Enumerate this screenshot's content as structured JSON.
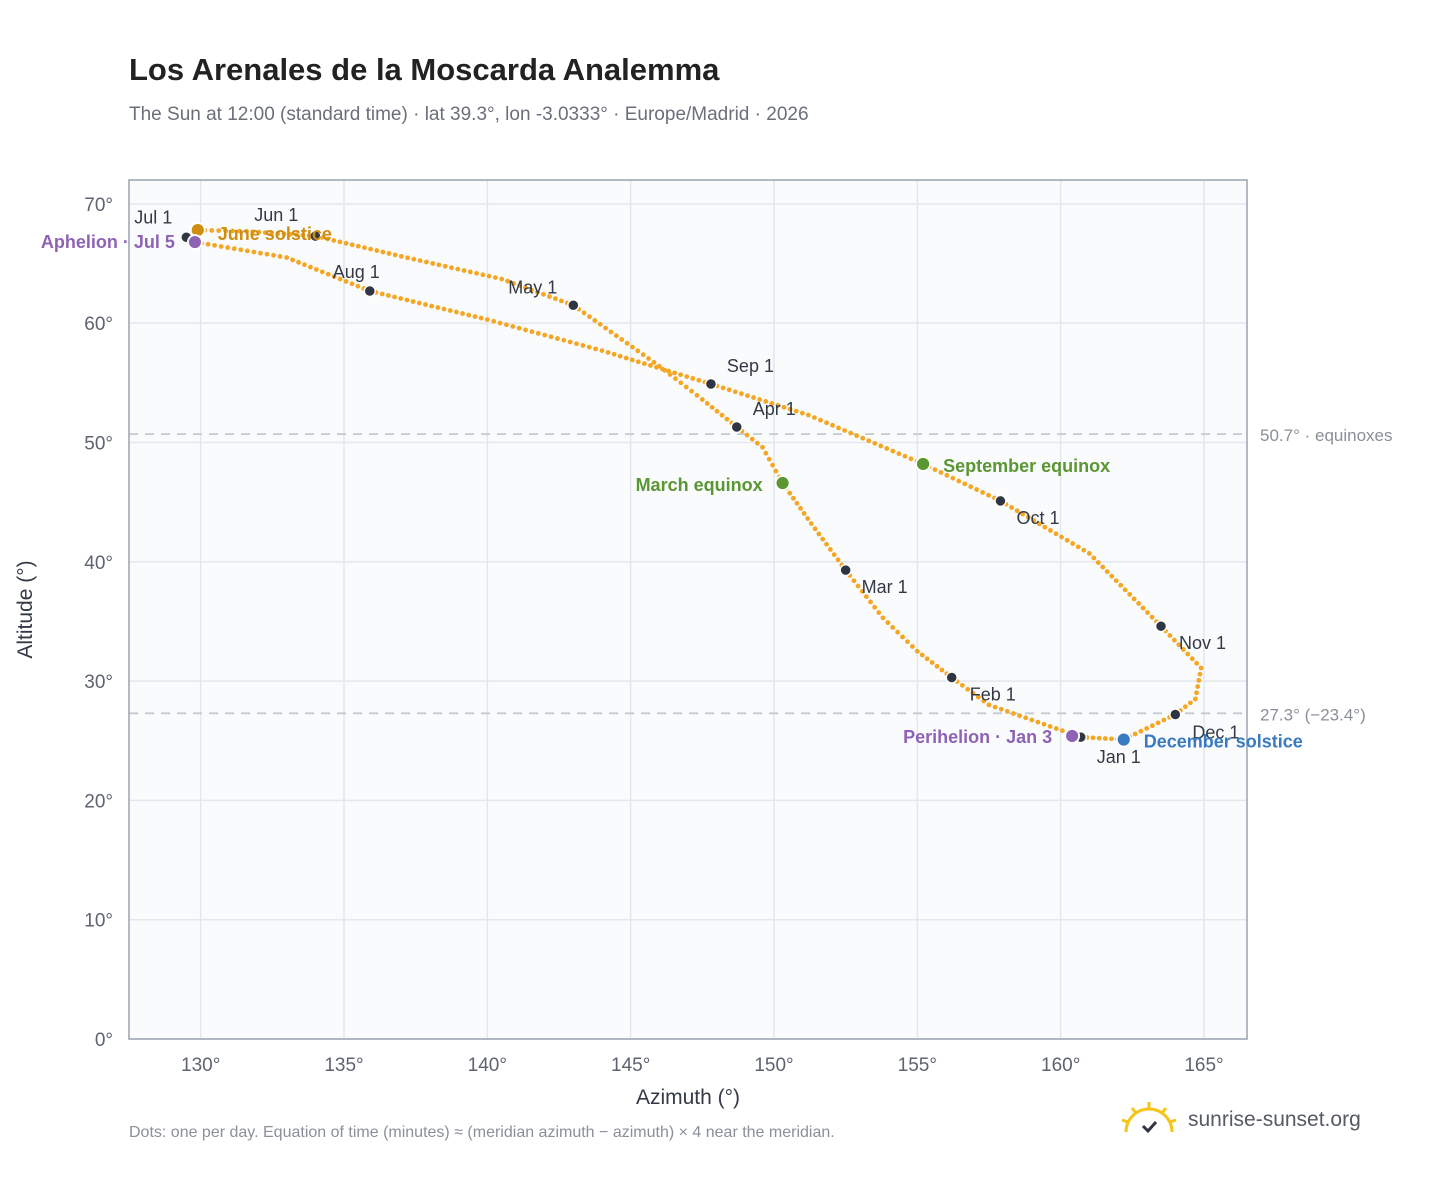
{
  "title": "Los Arenales de la Moscarda Analemma",
  "subtitle": "The Sun at 12:00 (standard time) · lat 39.3°, lon -3.0333° · Europe/Madrid · 2026",
  "footer_note": "Dots: one per day. Equation of time (minutes) ≈ (meridian azimuth − azimuth) × 4 near the meridian.",
  "brand": {
    "name": "sunrise-sunset.org",
    "icon": "sun-logo-icon"
  },
  "colors": {
    "curve": "#f5a623",
    "month_marker": "#2f3542",
    "equinox": "#5a9632",
    "december_solstice": "#3a7ac0",
    "june_solstice": "#d08e10",
    "apsis": "#8e63b5",
    "reference_line": "#c3cad3",
    "plot_bg": "#f9fbfd",
    "grid": "#e3e8ee",
    "frame": "#9aa3b0"
  },
  "chart_data": {
    "type": "scatter",
    "xlabel": "Azimuth (°)",
    "ylabel": "Altitude (°)",
    "xlim": [
      127.5,
      166.5
    ],
    "ylim": [
      0,
      72
    ],
    "x_ticks": [
      130,
      135,
      140,
      145,
      150,
      155,
      160,
      165
    ],
    "y_ticks": [
      0,
      10,
      20,
      30,
      40,
      50,
      60,
      70
    ],
    "x_tick_labels": [
      "130°",
      "135°",
      "140°",
      "145°",
      "150°",
      "155°",
      "160°",
      "165°"
    ],
    "y_tick_labels": [
      "0°",
      "10°",
      "20°",
      "30°",
      "40°",
      "50°",
      "60°",
      "70°"
    ],
    "grid": true,
    "series": [
      {
        "kind": "daily-path",
        "points": [
          [
            160.7,
            25.3
          ],
          [
            157.5,
            28.0
          ],
          [
            156.2,
            30.3
          ],
          [
            155.0,
            32.5
          ],
          [
            153.8,
            35.3
          ],
          [
            152.5,
            39.3
          ],
          [
            151.3,
            43.2
          ],
          [
            150.3,
            46.6
          ],
          [
            149.6,
            49.6
          ],
          [
            148.7,
            51.3
          ],
          [
            147.5,
            53.6
          ],
          [
            146.0,
            56.4
          ],
          [
            143.0,
            61.5
          ],
          [
            140.5,
            63.7
          ],
          [
            137.0,
            65.6
          ],
          [
            134.0,
            67.3
          ],
          [
            131.6,
            67.7
          ],
          [
            129.9,
            67.8
          ],
          [
            129.5,
            67.2
          ],
          [
            129.8,
            66.8
          ],
          [
            133.0,
            65.5
          ],
          [
            135.9,
            62.7
          ],
          [
            140.0,
            60.3
          ],
          [
            144.0,
            57.7
          ],
          [
            147.8,
            54.9
          ],
          [
            151.2,
            52.3
          ],
          [
            155.2,
            48.2
          ],
          [
            157.9,
            45.1
          ],
          [
            161.0,
            40.7
          ],
          [
            163.5,
            34.6
          ],
          [
            164.9,
            31.1
          ],
          [
            164.7,
            28.5
          ],
          [
            164.0,
            27.2
          ],
          [
            162.2,
            25.1
          ],
          [
            160.7,
            25.3
          ]
        ]
      }
    ],
    "month_markers": [
      {
        "label": "Jan 1",
        "x": 160.7,
        "y": 25.3
      },
      {
        "label": "Feb 1",
        "x": 156.2,
        "y": 30.3
      },
      {
        "label": "Mar 1",
        "x": 152.5,
        "y": 39.3
      },
      {
        "label": "Apr 1",
        "x": 148.7,
        "y": 51.3
      },
      {
        "label": "May 1",
        "x": 143.0,
        "y": 61.5
      },
      {
        "label": "Jun 1",
        "x": 134.0,
        "y": 67.3
      },
      {
        "label": "Jul 1",
        "x": 129.5,
        "y": 67.2
      },
      {
        "label": "Aug 1",
        "x": 135.9,
        "y": 62.7
      },
      {
        "label": "Sep 1",
        "x": 147.8,
        "y": 54.9
      },
      {
        "label": "Oct 1",
        "x": 157.9,
        "y": 45.1
      },
      {
        "label": "Nov 1",
        "x": 163.5,
        "y": 34.6
      },
      {
        "label": "Dec 1",
        "x": 164.0,
        "y": 27.2
      }
    ],
    "events": [
      {
        "label": "March equinox",
        "x": 150.3,
        "y": 46.6,
        "color_key": "equinox"
      },
      {
        "label": "September equinox",
        "x": 155.2,
        "y": 48.2,
        "color_key": "equinox"
      },
      {
        "label": "June solstice",
        "x": 129.9,
        "y": 67.8,
        "color_key": "june_solstice"
      },
      {
        "label": "December solstice",
        "x": 162.2,
        "y": 25.1,
        "color_key": "december_solstice"
      },
      {
        "label": "Aphelion · Jul 5",
        "x": 129.8,
        "y": 66.8,
        "color_key": "apsis"
      },
      {
        "label": "Perihelion · Jan 3",
        "x": 160.4,
        "y": 25.4,
        "color_key": "apsis"
      }
    ],
    "reference_lines": [
      {
        "y": 50.7,
        "label": "50.7° · equinoxes"
      },
      {
        "y": 27.3,
        "label": "27.3° (−23.4°)"
      }
    ]
  }
}
